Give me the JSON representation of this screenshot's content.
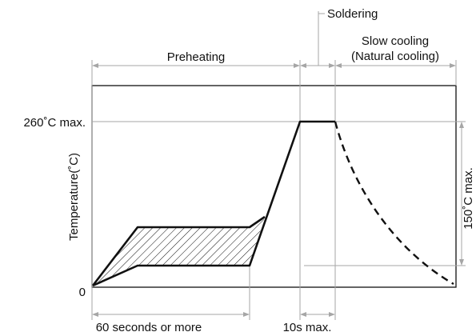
{
  "labels": {
    "soldering": "Soldering",
    "preheating": "Preheating",
    "slow_cooling_line1": "Slow cooling",
    "slow_cooling_line2": "(Natural cooling)",
    "peak_temp": "260˚C max.",
    "y_axis": "Temperature(˚C)",
    "cooling_drop": "150˚C max.",
    "origin": "0",
    "preheat_time": "60 seconds or more",
    "soldering_time": "10s max."
  },
  "colors": {
    "line": "#111111",
    "guide": "#a6a6a6",
    "background": "#ffffff"
  }
}
